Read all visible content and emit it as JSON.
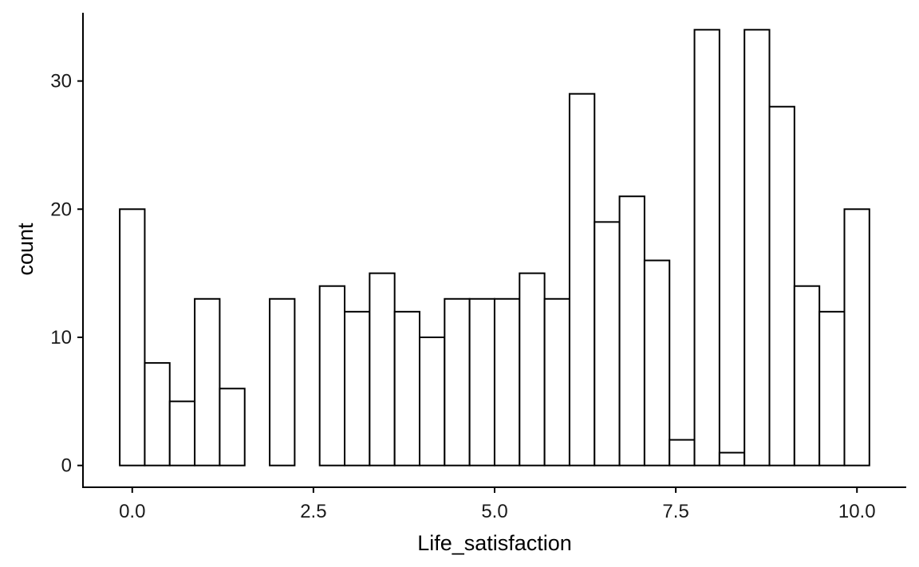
{
  "chart_data": {
    "type": "bar",
    "subtype": "histogram",
    "xlabel": "Life_satisfaction",
    "ylabel": "count",
    "bins": 30,
    "bin_width": 0.3448,
    "x_start": -0.1724,
    "xlim": [
      -0.68,
      10.68
    ],
    "ylim": [
      -1.7,
      35.7
    ],
    "x_ticks": [
      {
        "value": 0,
        "label": "0.0"
      },
      {
        "value": 2.5,
        "label": "2.5"
      },
      {
        "value": 5,
        "label": "5.0"
      },
      {
        "value": 7.5,
        "label": "7.5"
      },
      {
        "value": 10,
        "label": "10.0"
      }
    ],
    "y_ticks": [
      {
        "value": 0,
        "label": "0"
      },
      {
        "value": 10,
        "label": "10"
      },
      {
        "value": 20,
        "label": "20"
      },
      {
        "value": 30,
        "label": "30"
      }
    ],
    "counts": [
      20,
      8,
      5,
      13,
      6,
      0,
      13,
      0,
      14,
      12,
      15,
      12,
      10,
      13,
      13,
      13,
      15,
      13,
      29,
      19,
      21,
      16,
      2,
      34,
      1,
      34,
      28,
      14,
      12,
      20
    ],
    "bar_fill": "#ffffff",
    "bar_stroke": "#000000",
    "grid": false,
    "legend": "none"
  }
}
